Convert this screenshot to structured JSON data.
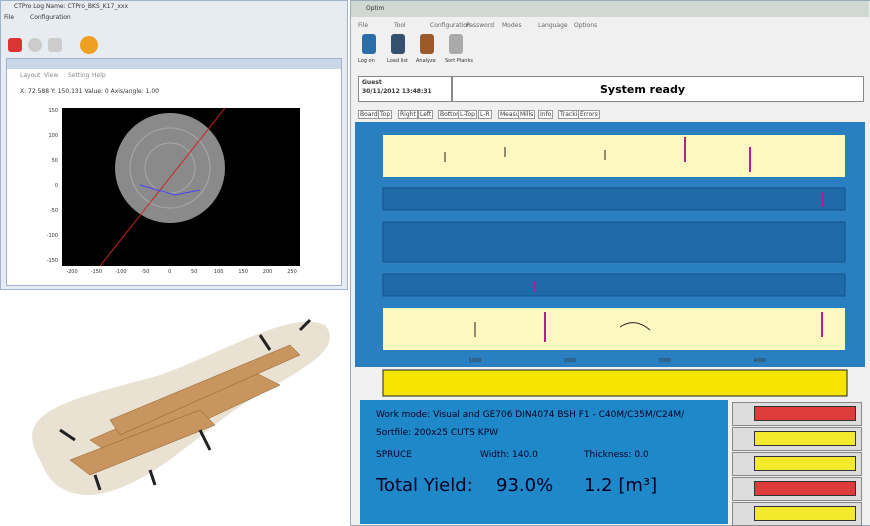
{
  "left_window": {
    "title": "CTPro    Log Name: CTPro_BKS_K17_xxx",
    "menu": [
      "File",
      "Configuration"
    ],
    "viewer": {
      "menu": [
        "Layout",
        "View",
        "Setting",
        "Help"
      ],
      "status": "X: 72.588   Y: 150.131   Value: 0   Axis/angle: 1.00",
      "y_ticks": [
        150,
        100,
        50,
        0,
        -50,
        -100,
        -150
      ],
      "x_ticks": [
        -200,
        -150,
        -100,
        -50,
        0,
        50,
        100,
        150,
        200,
        250
      ]
    }
  },
  "right_window": {
    "title": "Optim",
    "menu": [
      "File",
      "Tool",
      "Configuration",
      "Password",
      "Modes",
      "Language",
      "Options"
    ],
    "toolbar": [
      "Log on",
      "Load list",
      "Analyze",
      "Sort Planks"
    ],
    "user": "Guest",
    "datetime": "30/11/2012 13:48:31",
    "status": "System ready",
    "tabs": [
      "Board",
      "Top",
      "Right",
      "Left",
      "Bottom",
      "L-Top",
      "L-R",
      "Measure",
      "Mills",
      "Info",
      "Tracking",
      "Errors"
    ],
    "plot_x_ticks": [
      1000,
      2000,
      3000,
      4000
    ],
    "work_mode": "Work mode: Visual and GE706 DIN4074 BSH F1 - C40M/C35M/C24M/",
    "sortfile": "Sortfile: 200x25 CUTS KPW",
    "species": "SPRUCE",
    "width": "Width: 140.0",
    "thickness": "Thickness: 0.0",
    "yield_label": "Total Yield:",
    "yield_value": "93.0%",
    "volume": "1.2 [m³]",
    "indicator_colors": [
      "#e03b3b",
      "#f2ea2a",
      "#f2ea2a",
      "#e03b3b",
      "#f2ea2a"
    ]
  }
}
